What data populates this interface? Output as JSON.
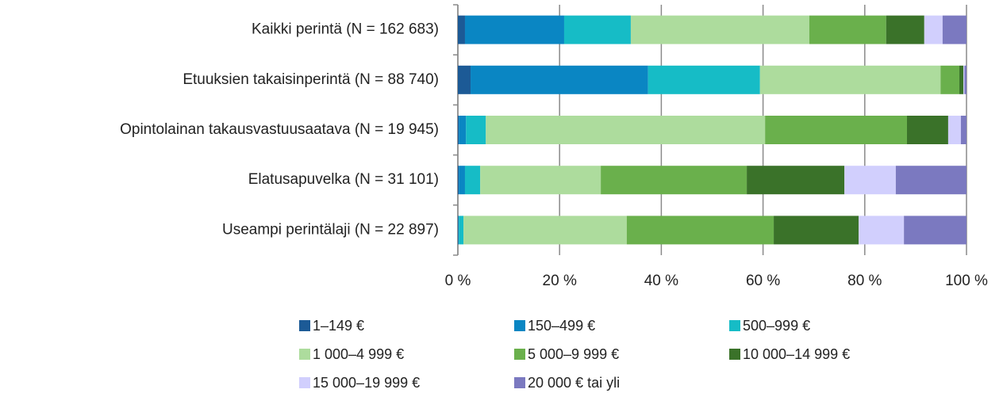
{
  "chart_data": {
    "type": "bar",
    "orientation": "horizontal",
    "stacked": true,
    "categories": [
      "Kaikki perintä (N = 162 683)",
      "Etuuksien takaisinperintä (N = 88 740)",
      "Opintolainan takausvastuusaatava (N = 19 945)",
      "Elatusapuvelka (N = 31 101)",
      "Useampi perintälaji (N = 22 897)"
    ],
    "series": [
      {
        "name": "1–149 €",
        "color": "#1c5a96",
        "values": [
          1.4,
          2.5,
          0.2,
          0.2,
          0.1
        ]
      },
      {
        "name": "150–499 €",
        "color": "#0a86c3",
        "values": [
          19.5,
          34.9,
          1.4,
          1.2,
          0.1
        ]
      },
      {
        "name": "500–999 €",
        "color": "#16bcc6",
        "values": [
          13.1,
          22.0,
          3.9,
          3.0,
          0.9
        ]
      },
      {
        "name": "1 000–4 999 €",
        "color": "#addc9d",
        "values": [
          35.1,
          35.5,
          54.9,
          23.7,
          32.1
        ]
      },
      {
        "name": "5 000–9 999 €",
        "color": "#6ab04c",
        "values": [
          15.1,
          3.7,
          27.9,
          28.7,
          28.9
        ]
      },
      {
        "name": "10 000–14 999 €",
        "color": "#3a7229",
        "values": [
          7.5,
          0.8,
          8.1,
          19.2,
          16.7
        ]
      },
      {
        "name": "15 000–19 999 €",
        "color": "#d1cffd",
        "values": [
          3.6,
          0.2,
          2.5,
          10.1,
          8.9
        ]
      },
      {
        "name": "20 000 € tai yli",
        "color": "#7b79c0",
        "values": [
          4.7,
          0.4,
          1.1,
          13.9,
          12.3
        ]
      }
    ],
    "xlim": [
      0,
      100
    ],
    "xticks": [
      {
        "value": 0,
        "label": "0 %"
      },
      {
        "value": 20,
        "label": "20 %"
      },
      {
        "value": 40,
        "label": "40 %"
      },
      {
        "value": 60,
        "label": "60 %"
      },
      {
        "value": 80,
        "label": "80 %"
      },
      {
        "value": 100,
        "label": "100 %"
      }
    ],
    "grid": true,
    "legend": "bottom"
  }
}
